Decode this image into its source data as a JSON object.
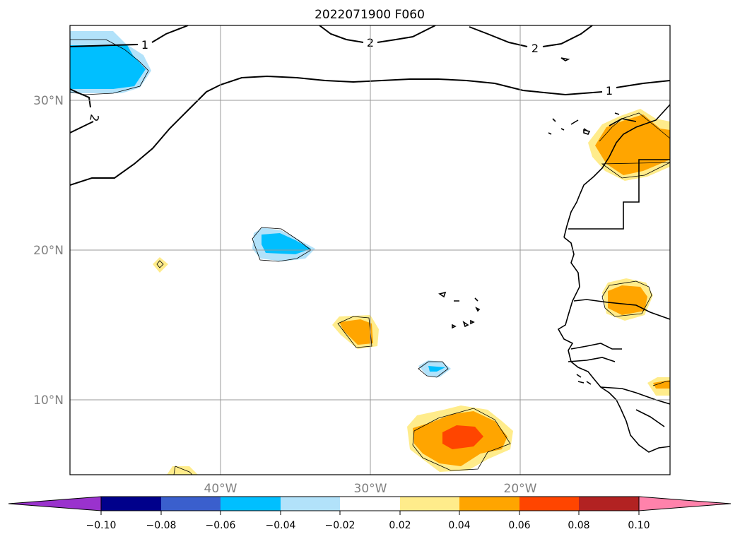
{
  "title": "2022071900 F060",
  "map": {
    "lat_labels": [
      "30°N",
      "20°N",
      "10°N"
    ],
    "lon_labels": [
      "40°W",
      "30°W",
      "20°W"
    ],
    "contour_labels": [
      "1",
      "2",
      "2",
      "1",
      "2"
    ]
  },
  "colorbar": {
    "tick_labels": [
      "−0.10",
      "−0.08",
      "−0.06",
      "−0.04",
      "−0.02",
      "0.02",
      "0.04",
      "0.06",
      "0.08",
      "0.10"
    ],
    "colors": [
      "#9a32cd",
      "#00008b",
      "#3a5fcd",
      "#00bfff",
      "#b2e2fa",
      "#ffffff",
      "#ffec8b",
      "#ffa500",
      "#ff4500",
      "#b22222",
      "#ff82ab"
    ]
  }
}
